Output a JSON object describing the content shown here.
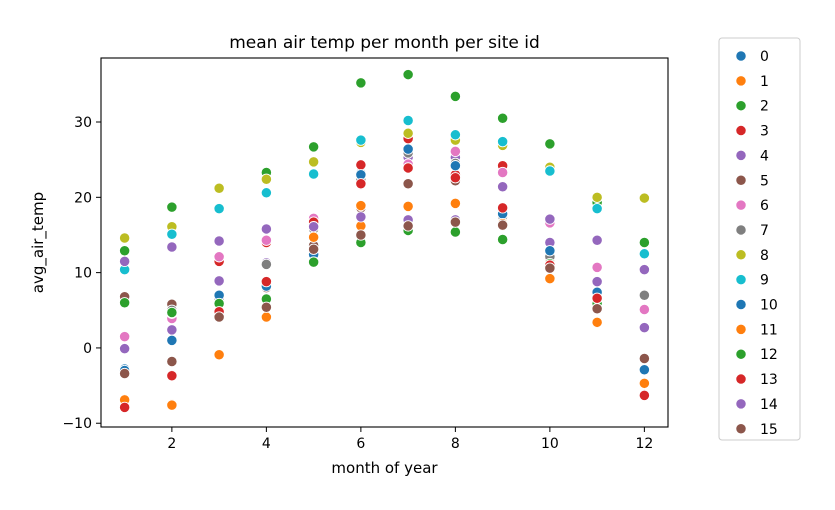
{
  "chart_data": {
    "type": "scatter",
    "title": "mean air temp per month per site id",
    "xlabel": "month of year",
    "ylabel": "avg_air_temp",
    "xlim": [
      0.5,
      12.5
    ],
    "ylim": [
      -10.5,
      38.5
    ],
    "xticks": [
      2,
      4,
      6,
      8,
      10,
      12
    ],
    "yticks": [
      -10,
      0,
      10,
      20,
      30
    ],
    "grid": false,
    "legend_position": "outside-right",
    "series": [
      {
        "name": "0",
        "color": "#1f77b4",
        "x": [
          1,
          2,
          3,
          4,
          5,
          6,
          7,
          8,
          9,
          10,
          11,
          12
        ],
        "y": [
          -2.8,
          1.0,
          7.0,
          11.2,
          16.2,
          23.2,
          26.3,
          24.4,
          18.1,
          12.8,
          7.2,
          -2.8
        ]
      },
      {
        "name": "1",
        "color": "#ff7f0e",
        "x": [
          1,
          2,
          3,
          4,
          5,
          6,
          7,
          8,
          9,
          10,
          11,
          12
        ],
        "y": [
          -6.8,
          -7.5,
          -0.8,
          4.0,
          14.8,
          16.2,
          18.7,
          19.1,
          16.2,
          9.3,
          3.3,
          -4.7
        ]
      },
      {
        "name": "2",
        "color": "#2ca02c",
        "x": [
          1,
          2,
          3,
          4,
          5,
          6,
          7,
          8,
          9,
          10,
          11,
          12
        ],
        "y": [
          12.9,
          18.7,
          6.0,
          23.3,
          26.7,
          35.2,
          36.3,
          33.4,
          30.5,
          27.1,
          19.3,
          7.1
        ]
      },
      {
        "name": "3",
        "color": "#d62728",
        "x": [
          1,
          2,
          3,
          4,
          5,
          6,
          7,
          8,
          9,
          10,
          11,
          12
        ],
        "y": [
          -7.8,
          -3.6,
          11.5,
          14.0,
          16.8,
          24.3,
          27.8,
          23.0,
          24.2,
          11.6,
          6.8,
          -6.2
        ]
      },
      {
        "name": "4",
        "color": "#9467bd",
        "x": [
          1,
          2,
          3,
          4,
          5,
          6,
          7,
          8,
          9,
          10,
          11,
          12
        ],
        "y": [
          -0.1,
          2.4,
          8.9,
          11.3,
          16.0,
          22.3,
          25.3,
          25.3,
          21.4,
          14.0,
          8.8,
          2.7
        ]
      },
      {
        "name": "5",
        "color": "#8c564b",
        "x": [
          1,
          2,
          3,
          4,
          5,
          6,
          7,
          8,
          9,
          10,
          11,
          12
        ],
        "y": [
          6.8,
          5.8,
          4.1,
          8.0,
          13.6,
          18.6,
          21.8,
          22.2,
          17.3,
          10.6,
          5.2,
          -1.5
        ]
      },
      {
        "name": "6",
        "color": "#e377c2",
        "x": [
          1,
          2,
          3,
          4,
          5,
          6,
          7,
          8,
          9,
          10,
          11,
          12
        ],
        "y": [
          1.5,
          3.9,
          12.1,
          14.3,
          17.2,
          21.7,
          24.4,
          26.1,
          23.3,
          16.6,
          10.7,
          5.1
        ]
      },
      {
        "name": "7",
        "color": "#7f7f7f",
        "x": [
          1,
          2,
          3,
          4,
          5,
          6,
          7,
          8,
          9,
          10,
          11,
          12
        ],
        "y": [
          -3.3,
          5.0,
          6.6,
          11.1,
          15.8,
          22.3,
          25.9,
          24.5,
          17.5,
          12.1,
          7.0,
          7.0
        ]
      },
      {
        "name": "8",
        "color": "#bcbd22",
        "x": [
          1,
          2,
          3,
          4,
          5,
          6,
          7,
          8,
          9,
          10,
          11,
          12
        ],
        "y": [
          14.6,
          16.1,
          21.2,
          22.4,
          24.7,
          27.3,
          28.5,
          27.6,
          26.9,
          24.0,
          20.0,
          19.9
        ]
      },
      {
        "name": "9",
        "color": "#17becf",
        "x": [
          1,
          2,
          3,
          4,
          5,
          6,
          7,
          8,
          9,
          10,
          11,
          12
        ],
        "y": [
          10.4,
          15.1,
          18.5,
          20.6,
          23.1,
          27.6,
          30.2,
          28.3,
          27.4,
          23.5,
          18.5,
          12.5
        ]
      },
      {
        "name": "10",
        "color": "#1f77b4",
        "x": [
          1,
          2,
          3,
          4,
          5,
          6,
          7,
          8,
          9,
          10,
          11,
          12
        ],
        "y": [
          -3.0,
          4.6,
          7.0,
          8.2,
          12.4,
          23.0,
          26.4,
          24.2,
          17.8,
          12.9,
          7.4,
          -2.9
        ]
      },
      {
        "name": "11",
        "color": "#ff7f0e",
        "x": [
          1,
          2,
          3,
          4,
          5,
          6,
          7,
          8,
          9,
          10,
          11,
          12
        ],
        "y": [
          -6.9,
          -7.6,
          -0.9,
          4.1,
          14.7,
          18.9,
          18.8,
          19.2,
          16.5,
          9.2,
          3.4,
          -4.7
        ]
      },
      {
        "name": "12",
        "color": "#2ca02c",
        "x": [
          1,
          2,
          3,
          4,
          5,
          6,
          7,
          8,
          9,
          10,
          11,
          12
        ],
        "y": [
          6.0,
          4.7,
          5.9,
          6.5,
          11.4,
          14.0,
          15.6,
          15.4,
          14.4,
          11.2,
          5.9,
          14.0
        ]
      },
      {
        "name": "13",
        "color": "#d62728",
        "x": [
          1,
          2,
          3,
          4,
          5,
          6,
          7,
          8,
          9,
          10,
          11,
          12
        ],
        "y": [
          -7.9,
          -3.7,
          4.8,
          8.8,
          16.7,
          21.8,
          23.9,
          22.6,
          18.6,
          11.0,
          6.6,
          -6.3
        ]
      },
      {
        "name": "14",
        "color": "#9467bd",
        "x": [
          1,
          2,
          3,
          4,
          5,
          6,
          7,
          8,
          9,
          10,
          11,
          12
        ],
        "y": [
          11.5,
          13.4,
          14.2,
          15.8,
          16.1,
          17.4,
          17.0,
          17.0,
          21.4,
          17.1,
          14.3,
          10.4
        ]
      },
      {
        "name": "15",
        "color": "#8c564b",
        "x": [
          1,
          2,
          3,
          4,
          5,
          6,
          7,
          8,
          9,
          10,
          11,
          12
        ],
        "y": [
          -3.4,
          -1.8,
          4.1,
          5.4,
          13.1,
          15.0,
          16.2,
          16.7,
          16.3,
          10.6,
          5.2,
          -1.4
        ]
      }
    ]
  }
}
